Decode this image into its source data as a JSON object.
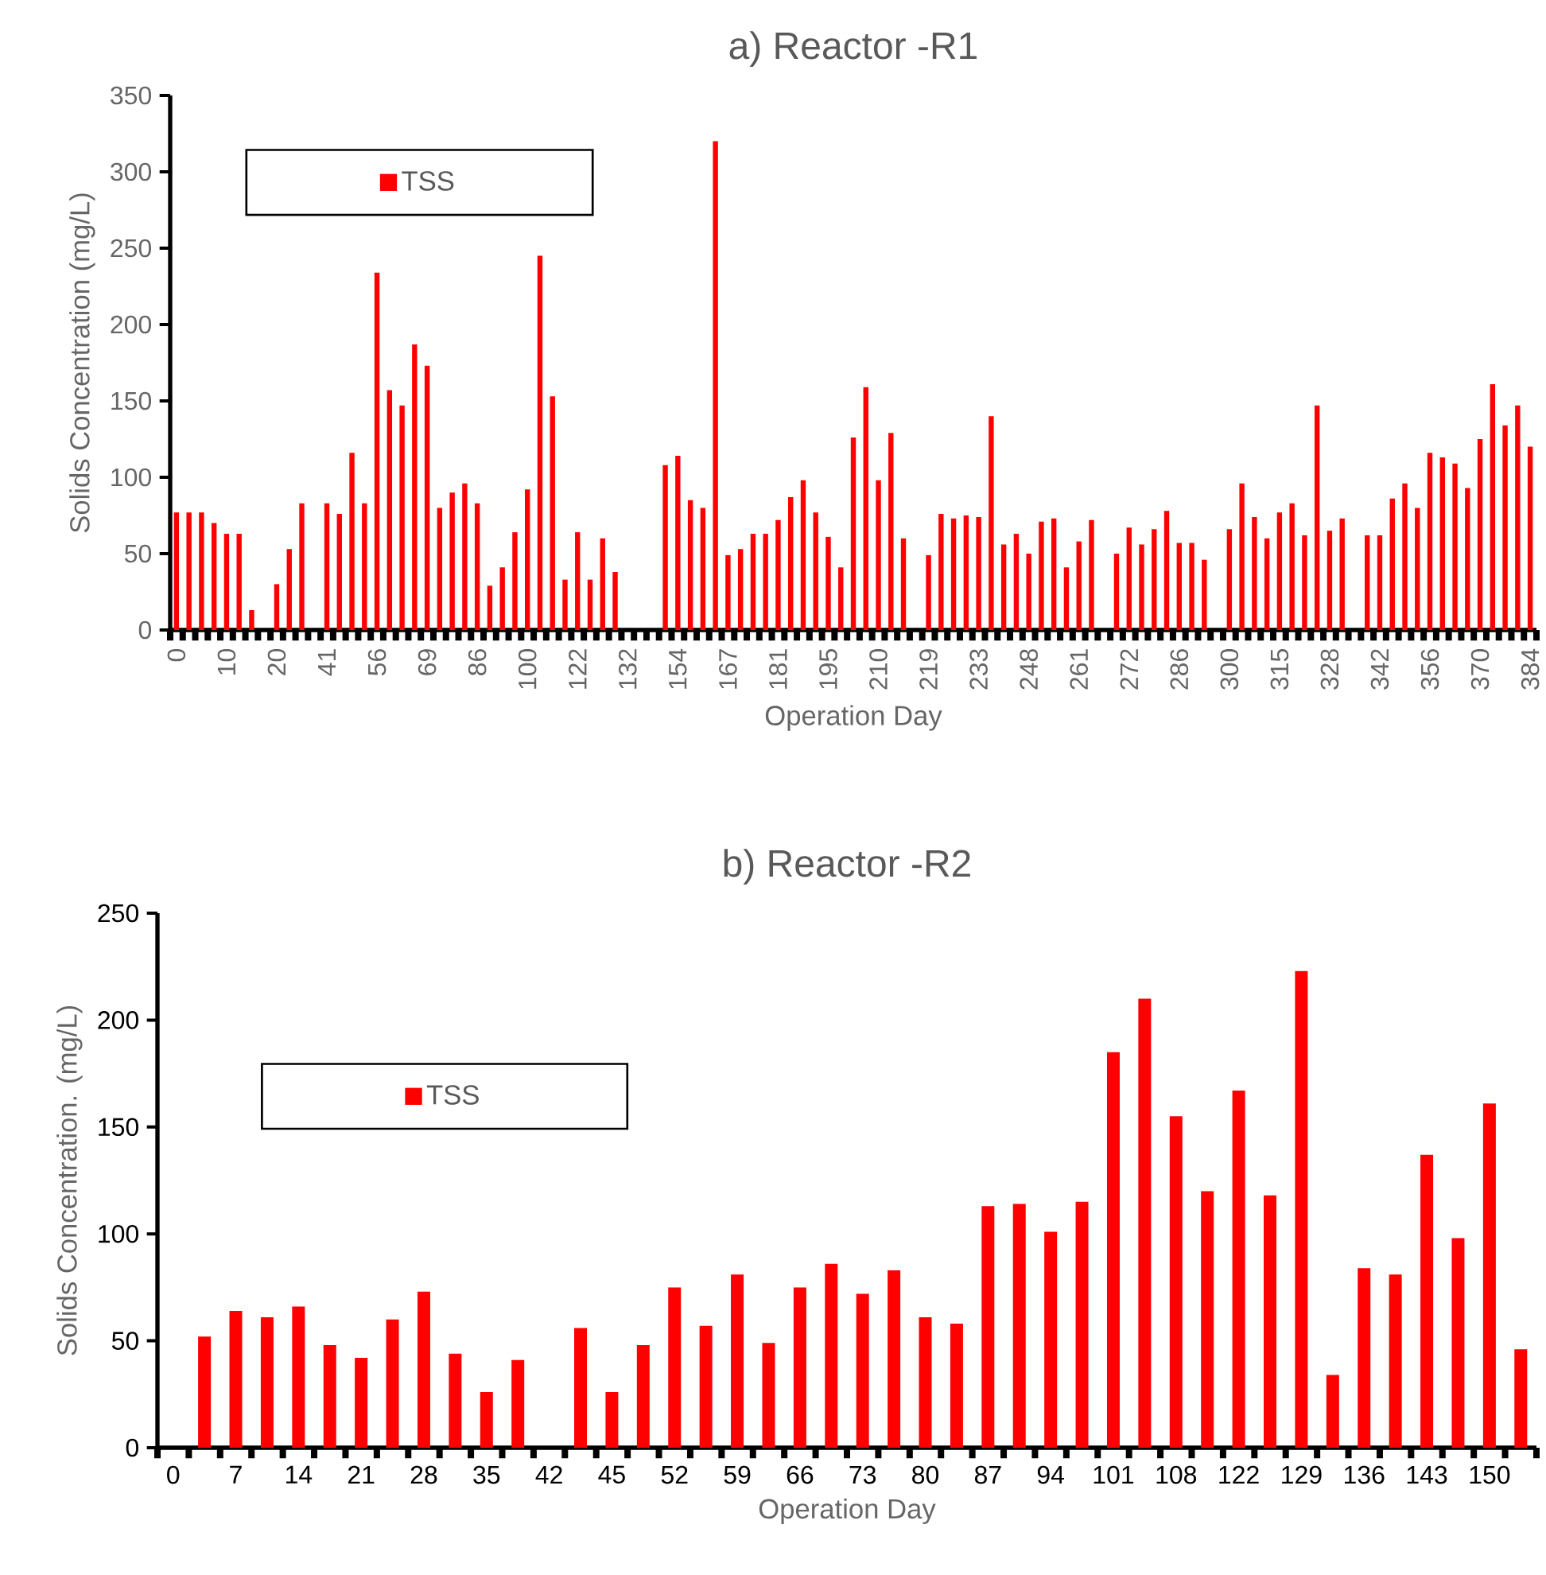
{
  "chart_data": [
    {
      "type": "bar",
      "title": "a) Reactor -R1",
      "xlabel": "Operation Day",
      "ylabel": "Solids Concentration (mg/L)",
      "categories": [
        "0",
        null,
        null,
        null,
        "10",
        null,
        null,
        null,
        "20",
        null,
        null,
        null,
        "41",
        null,
        null,
        null,
        "56",
        null,
        null,
        null,
        "69",
        null,
        null,
        null,
        "86",
        null,
        null,
        null,
        "100",
        null,
        null,
        null,
        "122",
        null,
        null,
        null,
        "132",
        null,
        null,
        null,
        "154",
        null,
        null,
        null,
        "167",
        null,
        null,
        null,
        "181",
        null,
        null,
        null,
        "195",
        null,
        null,
        null,
        "210",
        null,
        null,
        null,
        "219",
        null,
        null,
        null,
        "233",
        null,
        null,
        null,
        "248",
        null,
        null,
        null,
        "261",
        null,
        null,
        null,
        "272",
        null,
        null,
        null,
        "286",
        null,
        null,
        null,
        "300",
        null,
        null,
        null,
        "315",
        null,
        null,
        null,
        "328",
        null,
        null,
        null,
        "342",
        null,
        null,
        null,
        "356",
        null,
        null,
        null,
        "370",
        null,
        null,
        null,
        "384"
      ],
      "series": [
        {
          "name": "TSS",
          "color": "#ff0000",
          "values": [
            77,
            77,
            77,
            70,
            63,
            63,
            13,
            null,
            30,
            53,
            83,
            null,
            83,
            76,
            116,
            83,
            234,
            157,
            147,
            187,
            173,
            80,
            90,
            96,
            83,
            29,
            41,
            64,
            92,
            245,
            153,
            33,
            64,
            33,
            60,
            38,
            null,
            null,
            null,
            108,
            114,
            85,
            80,
            320,
            49,
            53,
            63,
            63,
            72,
            87,
            98,
            77,
            61,
            41,
            126,
            159,
            98,
            129,
            60,
            null,
            49,
            76,
            73,
            75,
            74,
            140,
            56,
            63,
            50,
            71,
            73,
            41,
            58,
            72,
            null,
            50,
            67,
            56,
            66,
            78,
            57,
            57,
            46,
            null,
            66,
            96,
            74,
            60,
            77,
            83,
            62,
            147,
            65,
            73,
            null,
            62,
            62,
            86,
            96,
            80,
            116,
            113,
            109,
            93,
            125,
            161,
            134,
            147,
            120
          ]
        }
      ],
      "ylim": [
        0,
        350
      ],
      "yticks": [
        0,
        50,
        100,
        150,
        200,
        250,
        300,
        350
      ],
      "legend": "top left"
    },
    {
      "type": "bar",
      "title": "b) Reactor -R2",
      "xlabel": "Operation Day",
      "ylabel": "Solids Concentration. (mg/L)",
      "categories": [
        "0",
        null,
        "7",
        null,
        "14",
        null,
        "21",
        null,
        "28",
        null,
        "35",
        null,
        "42",
        null,
        "45",
        null,
        "52",
        null,
        "59",
        null,
        "66",
        null,
        "73",
        null,
        "80",
        null,
        "87",
        null,
        "94",
        null,
        "101",
        null,
        "108",
        null,
        "122",
        null,
        "129",
        null,
        "136",
        null,
        "143",
        null,
        "150",
        null
      ],
      "series": [
        {
          "name": "TSS",
          "color": "#ff0000",
          "values": [
            null,
            52,
            64,
            61,
            66,
            48,
            42,
            60,
            73,
            44,
            26,
            41,
            null,
            56,
            26,
            48,
            75,
            57,
            81,
            49,
            75,
            86,
            72,
            83,
            61,
            58,
            113,
            114,
            101,
            115,
            185,
            210,
            155,
            120,
            167,
            118,
            223,
            34,
            84,
            81,
            137,
            98,
            161,
            46
          ]
        }
      ],
      "ylim": [
        0,
        250
      ],
      "yticks": [
        0,
        50,
        100,
        150,
        200,
        250
      ],
      "legend": "top left"
    }
  ]
}
